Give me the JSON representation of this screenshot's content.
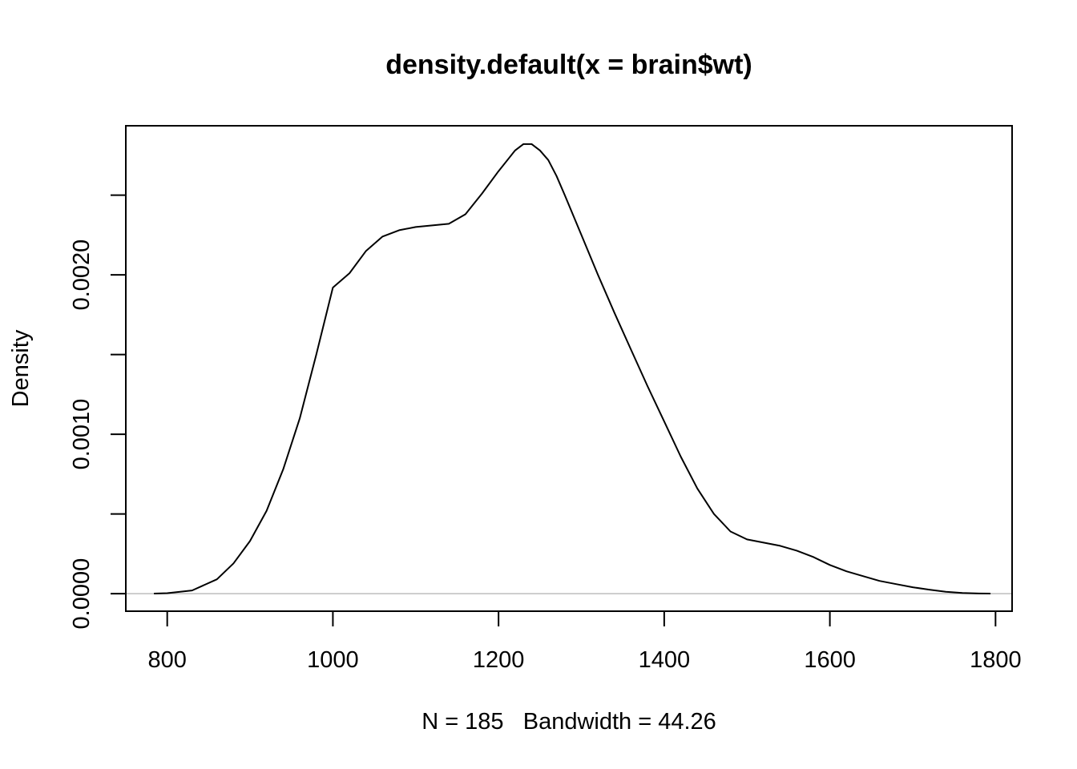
{
  "chart_data": {
    "type": "line",
    "title": "density.default(x = brain$wt)",
    "xlabel": "N = 185   Bandwidth = 44.26",
    "ylabel": "Density",
    "xlim": [
      750,
      1820
    ],
    "ylim": [
      -0.00011,
      0.002935
    ],
    "x_ticks": [
      800,
      1000,
      1200,
      1400,
      1600,
      1800
    ],
    "x_tick_labels": [
      "800",
      "1000",
      "1200",
      "1400",
      "1600",
      "1800"
    ],
    "y_ticks": [
      0,
      0.0005,
      0.001,
      0.0015,
      0.002,
      0.0025
    ],
    "y_tick_labels": [
      "0.0000",
      "",
      "0.0010",
      "",
      "0.0020",
      ""
    ],
    "grid": false,
    "legend": "none",
    "baseline": 0,
    "series": [
      {
        "x": [
          784,
          800,
          830,
          860,
          880,
          900,
          920,
          940,
          960,
          980,
          1000,
          1020,
          1040,
          1060,
          1080,
          1100,
          1120,
          1140,
          1160,
          1180,
          1200,
          1220,
          1230,
          1240,
          1250,
          1260,
          1270,
          1280,
          1300,
          1320,
          1340,
          1360,
          1380,
          1400,
          1420,
          1440,
          1460,
          1480,
          1500,
          1520,
          1540,
          1560,
          1580,
          1600,
          1620,
          1640,
          1660,
          1680,
          1700,
          1720,
          1740,
          1760,
          1780,
          1794
        ],
        "y": [
          3e-07,
          3e-06,
          2e-05,
          9e-05,
          0.00019,
          0.00033,
          0.00052,
          0.00078,
          0.0011,
          0.0015,
          0.00192,
          0.00201,
          0.00215,
          0.00224,
          0.00228,
          0.0023,
          0.00231,
          0.00232,
          0.00238,
          0.00251,
          0.00265,
          0.00278,
          0.00282,
          0.00282,
          0.00278,
          0.00272,
          0.00262,
          0.0025,
          0.00225,
          0.002,
          0.00176,
          0.00153,
          0.0013,
          0.00108,
          0.00086,
          0.00066,
          0.0005,
          0.00039,
          0.00034,
          0.00032,
          0.0003,
          0.00027,
          0.00023,
          0.00018,
          0.00014,
          0.00011,
          8e-05,
          6e-05,
          4e-05,
          2.5e-05,
          1.2e-05,
          4e-06,
          1e-06,
          3e-07
        ]
      }
    ]
  }
}
